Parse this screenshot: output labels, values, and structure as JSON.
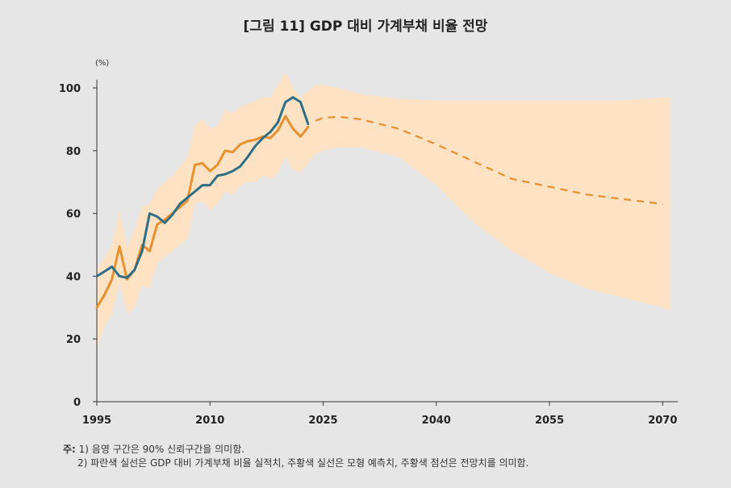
{
  "title": "[그림 11] GDP 대비 가계부채 비율 전망",
  "notes": {
    "prefix": "주:",
    "line1": "1) 음영 구간은 90% 신뢰구간을 의미함.",
    "line2": "2) 파란색 실선은 GDP 대비 가계부채 비율 실적치, 주황색 실선은 모형 예측치, 주황색 점선은 전망치를 의미함."
  },
  "chart_data": {
    "type": "line",
    "ylabel": "(%)",
    "xlim": [
      1995,
      2072
    ],
    "ylim": [
      0,
      100
    ],
    "x_ticks": [
      "1995",
      "2010",
      "2025",
      "2040",
      "2055",
      "2070"
    ],
    "y_ticks": [
      "0",
      "20",
      "40",
      "60",
      "80",
      "100"
    ],
    "grid": false,
    "colors": {
      "actual": "#2e6e86",
      "model": "#e8902e",
      "forecast": "#e8902e",
      "band": "#fde2c4"
    },
    "series": [
      {
        "name": "GDP 대비 가계부채 비율 실적치",
        "style": "solid",
        "x": [
          1995,
          1996,
          1997,
          1998,
          1999,
          2000,
          2001,
          2002,
          2003,
          2004,
          2005,
          2006,
          2007,
          2008,
          2009,
          2010,
          2011,
          2012,
          2013,
          2014,
          2015,
          2016,
          2017,
          2018,
          2019,
          2020,
          2021,
          2022,
          2023
        ],
        "y": [
          40,
          41.5,
          43,
          40,
          39.5,
          42,
          48,
          60,
          59,
          57,
          59.5,
          63,
          65,
          67,
          69,
          69,
          72,
          72.5,
          73.5,
          75,
          78,
          81.5,
          84,
          86,
          89,
          95.5,
          97,
          95.5,
          88.5
        ]
      },
      {
        "name": "모형 예측치",
        "style": "solid",
        "x": [
          1995,
          1996,
          1997,
          1998,
          1999,
          2000,
          2001,
          2002,
          2003,
          2004,
          2005,
          2006,
          2007,
          2008,
          2009,
          2010,
          2011,
          2012,
          2013,
          2014,
          2015,
          2016,
          2017,
          2018,
          2019,
          2020,
          2021,
          2022,
          2023
        ],
        "y": [
          30,
          34,
          39,
          49.5,
          39,
          42,
          50,
          48,
          56.5,
          58,
          60,
          62,
          64,
          75.5,
          76,
          73.5,
          75.5,
          80,
          79.5,
          82,
          83,
          83.5,
          84.5,
          84,
          86.5,
          91,
          87,
          84.5,
          87.5
        ]
      },
      {
        "name": "전망치",
        "style": "dashed",
        "x": [
          2024,
          2025,
          2027,
          2030,
          2035,
          2040,
          2045,
          2050,
          2055,
          2060,
          2065,
          2070
        ],
        "y": [
          89.5,
          90.5,
          90.8,
          90,
          87,
          82,
          76.5,
          71,
          68.5,
          66,
          64.5,
          63
        ]
      }
    ],
    "confidence_band": {
      "label": "90% 신뢰구간",
      "x": [
        1995,
        1996,
        1997,
        1998,
        1999,
        2000,
        2001,
        2002,
        2003,
        2004,
        2005,
        2006,
        2007,
        2008,
        2009,
        2010,
        2011,
        2012,
        2013,
        2014,
        2015,
        2016,
        2017,
        2018,
        2019,
        2020,
        2021,
        2022,
        2023,
        2024,
        2025,
        2027,
        2030,
        2035,
        2040,
        2045,
        2050,
        2055,
        2060,
        2065,
        2070,
        2071
      ],
      "upper": [
        42,
        46,
        50,
        61,
        49,
        55,
        62,
        63,
        68,
        70,
        72,
        75,
        78,
        88,
        90,
        87,
        88,
        93,
        92,
        94,
        95,
        96,
        97,
        97,
        101,
        105,
        100,
        97,
        99,
        101,
        101,
        100,
        98,
        96.5,
        96,
        96,
        96,
        96,
        96,
        96,
        97,
        97
      ],
      "lower": [
        17,
        24,
        28,
        38,
        28,
        30,
        37,
        36,
        44,
        46,
        48,
        50,
        52,
        63,
        64,
        61,
        63,
        67,
        66,
        69,
        70,
        70,
        72,
        71,
        73,
        78,
        74,
        73,
        76,
        79,
        80,
        81,
        81,
        78,
        69,
        57,
        48,
        41,
        36,
        33,
        30,
        29
      ]
    }
  }
}
